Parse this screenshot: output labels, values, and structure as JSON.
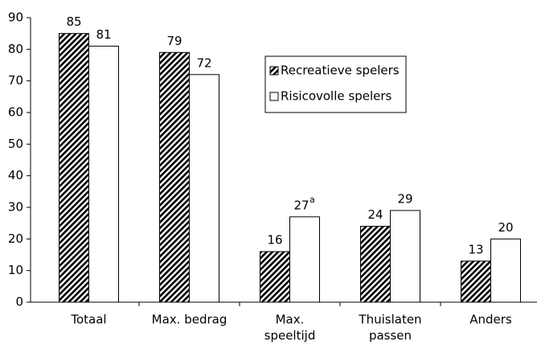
{
  "chart_data": {
    "type": "bar",
    "categories": [
      [
        "Totaal"
      ],
      [
        "Max. bedrag"
      ],
      [
        "Max.",
        "speeltijd"
      ],
      [
        "Thuislaten",
        "passen"
      ],
      [
        "Anders"
      ]
    ],
    "series": [
      {
        "name": "Recreatieve spelers",
        "color": "hatched",
        "values": [
          85,
          79,
          16,
          24,
          13
        ]
      },
      {
        "name": "Risicovolle spelers",
        "color": "#ffffff",
        "values": [
          81,
          72,
          27,
          29,
          20
        ]
      }
    ],
    "annotations": [
      {
        "text": "a",
        "series": 1,
        "index": 2
      }
    ],
    "ylim": [
      0,
      90
    ],
    "yticks": [
      0,
      10,
      20,
      30,
      40,
      50,
      60,
      70,
      80,
      90
    ],
    "grid": false,
    "legend": "upper right"
  }
}
